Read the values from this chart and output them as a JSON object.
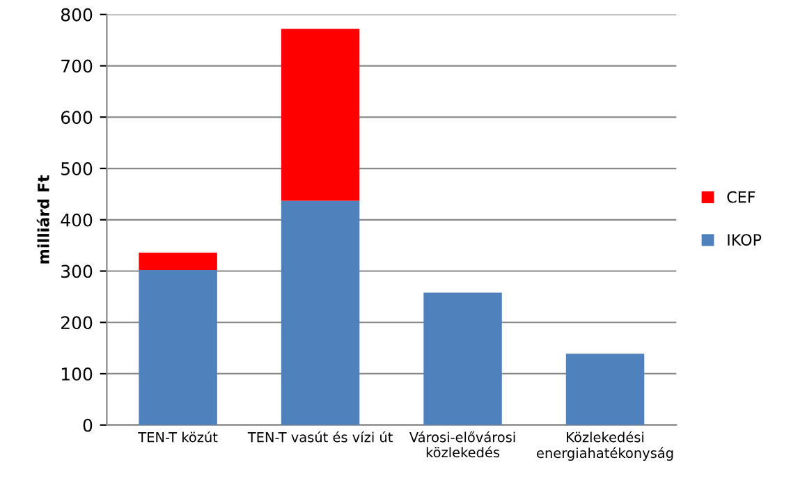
{
  "chart_data": {
    "type": "bar",
    "stacked": true,
    "ylabel": "milliárd Ft",
    "categories": [
      "TEN-T közút",
      "TEN-T vasút és vízi út",
      "Városi-elővárosi\nközlekedés",
      "Közlekedési\nenergiahatékonyság"
    ],
    "series": [
      {
        "name": "IKOP",
        "color": "#4f81bd",
        "values": [
          302,
          437,
          258,
          139
        ]
      },
      {
        "name": "CEF",
        "color": "#ff0000",
        "values": [
          34,
          335,
          null,
          null
        ]
      }
    ],
    "ylim": [
      0,
      800
    ],
    "yticks": [
      0,
      100,
      200,
      300,
      400,
      500,
      600,
      700,
      800
    ],
    "grid": "y",
    "legend": "right"
  }
}
